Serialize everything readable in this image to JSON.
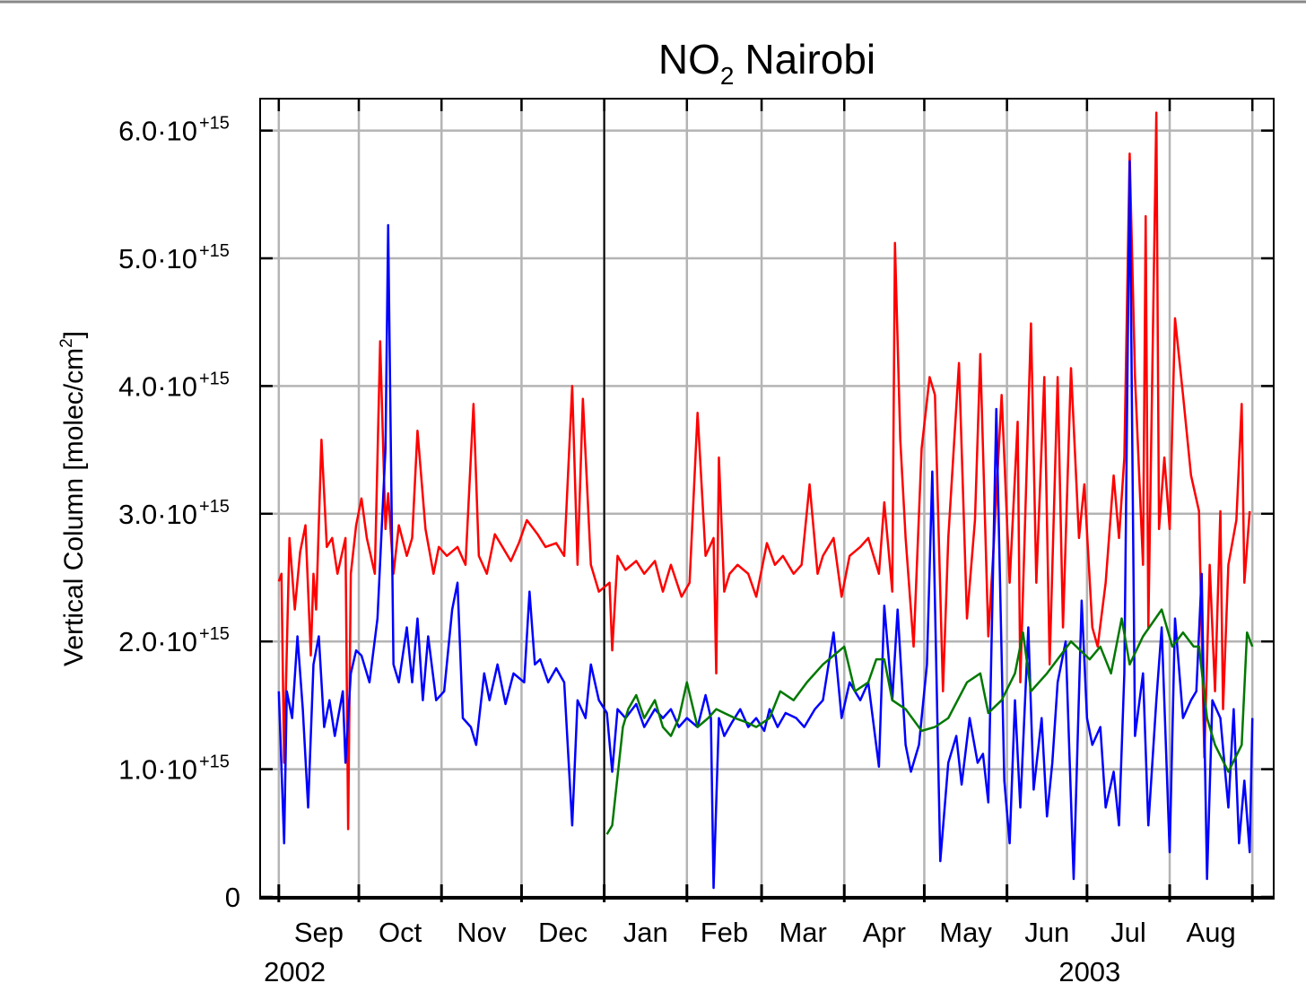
{
  "chart_data": {
    "type": "line",
    "title": {
      "text": "NO",
      "sub": "2",
      "rest": "Nairobi"
    },
    "y_label": {
      "text": "Vertical Column [molec/cm",
      "sup": "2",
      "rest": "]"
    },
    "xlim": [
      -7,
      373
    ],
    "ylim": [
      0,
      6250000000000000.0
    ],
    "xticks": [
      {
        "value": 0,
        "label": "Sep"
      },
      {
        "value": 30,
        "label": "Oct"
      },
      {
        "value": 61,
        "label": "Nov"
      },
      {
        "value": 91,
        "label": "Dec"
      },
      {
        "value": 122,
        "label": "Jan"
      },
      {
        "value": 153,
        "label": "Feb"
      },
      {
        "value": 181,
        "label": "Mar"
      },
      {
        "value": 212,
        "label": "Apr"
      },
      {
        "value": 242,
        "label": "May"
      },
      {
        "value": 273,
        "label": "Jun"
      },
      {
        "value": 303,
        "label": "Jul"
      },
      {
        "value": 334,
        "label": "Aug"
      },
      {
        "value": 365,
        "label": null
      }
    ],
    "yticks": [
      0,
      {
        "value": 1000000000000000.0,
        "label": "1.0·10",
        "exponent": "+15"
      },
      {
        "value": 2000000000000000.0,
        "label": "2.0·10",
        "exponent": "+15"
      },
      {
        "value": 3000000000000000.0,
        "label": "3.0·10",
        "exponent": "+15"
      },
      {
        "value": 4000000000000000.0,
        "label": "4.0·10",
        "exponent": "+15"
      },
      {
        "value": 5000000000000000.0,
        "label": "5.0·10",
        "exponent": "+15"
      },
      {
        "value": 6000000000000000.0,
        "label": "6.0·10",
        "exponent": "+15"
      }
    ],
    "grid": true,
    "year_boundary": 122,
    "annotations": [
      {
        "x": 6,
        "label": "2002"
      },
      {
        "x": 304,
        "label": "2003"
      }
    ],
    "series": [
      {
        "color": "#ff0000",
        "x": [
          0,
          1,
          2,
          4,
          6,
          8,
          10,
          12,
          13,
          14,
          16,
          18,
          20,
          22,
          25,
          26,
          27,
          29,
          31,
          33,
          36,
          38,
          40,
          41,
          43,
          45,
          48,
          50,
          52,
          55,
          58,
          60,
          63,
          67,
          70,
          73,
          75,
          78,
          81,
          83,
          87,
          90,
          93,
          97,
          100,
          104,
          107,
          110,
          112,
          114,
          117,
          120,
          124,
          125,
          127,
          130,
          134,
          137,
          141,
          144,
          147,
          151,
          154,
          157,
          160,
          163,
          164,
          165,
          167,
          169,
          172,
          176,
          179,
          183,
          186,
          189,
          193,
          196,
          199,
          202,
          204,
          208,
          211,
          214,
          218,
          221,
          225,
          227,
          230,
          231,
          233,
          235,
          238,
          241,
          244,
          246,
          249,
          251,
          255,
          258,
          261,
          263,
          266,
          268,
          271,
          274,
          277,
          278,
          282,
          284,
          287,
          289,
          292,
          294,
          297,
          300,
          302,
          305,
          307,
          310,
          313,
          315,
          317,
          319,
          321,
          324,
          325,
          326,
          329,
          330,
          332,
          334,
          336,
          339,
          342,
          345,
          347,
          349,
          351,
          353,
          354,
          356,
          359,
          361,
          362,
          364
        ],
        "values": [
          2470000000000000.0,
          2530000000000000.0,
          1050000000000000.0,
          2810000000000000.0,
          2250000000000000.0,
          2700000000000000.0,
          2910000000000000.0,
          1890000000000000.0,
          2530000000000000.0,
          2250000000000000.0,
          3580000000000000.0,
          2740000000000000.0,
          2810000000000000.0,
          2530000000000000.0,
          2810000000000000.0,
          530000000000000.0,
          2530000000000000.0,
          2910000000000000.0,
          3120000000000000.0,
          2810000000000000.0,
          2530000000000000.0,
          4350000000000000.0,
          2880000000000000.0,
          3160000000000000.0,
          2530000000000000.0,
          2910000000000000.0,
          2670000000000000.0,
          2810000000000000.0,
          3650000000000000.0,
          2880000000000000.0,
          2530000000000000.0,
          2740000000000000.0,
          2670000000000000.0,
          2740000000000000.0,
          2600000000000000.0,
          3860000000000000.0,
          2670000000000000.0,
          2530000000000000.0,
          2840000000000000.0,
          2770000000000000.0,
          2630000000000000.0,
          2770000000000000.0,
          2950000000000000.0,
          2840000000000000.0,
          2740000000000000.0,
          2770000000000000.0,
          2670000000000000.0,
          4000000000000000.0,
          2600000000000000.0,
          3900000000000000.0,
          2600000000000000.0,
          2390000000000000.0,
          2460000000000000.0,
          1930000000000000.0,
          2670000000000000.0,
          2560000000000000.0,
          2630000000000000.0,
          2530000000000000.0,
          2630000000000000.0,
          2390000000000000.0,
          2600000000000000.0,
          2350000000000000.0,
          2460000000000000.0,
          3790000000000000.0,
          2670000000000000.0,
          2810000000000000.0,
          1750000000000000.0,
          3440000000000000.0,
          2390000000000000.0,
          2530000000000000.0,
          2600000000000000.0,
          2530000000000000.0,
          2350000000000000.0,
          2770000000000000.0,
          2600000000000000.0,
          2670000000000000.0,
          2530000000000000.0,
          2600000000000000.0,
          3230000000000000.0,
          2530000000000000.0,
          2670000000000000.0,
          2810000000000000.0,
          2350000000000000.0,
          2670000000000000.0,
          2740000000000000.0,
          2810000000000000.0,
          2530000000000000.0,
          3090000000000000.0,
          2390000000000000.0,
          5120000000000000.0,
          3580000000000000.0,
          2810000000000000.0,
          1960000000000000.0,
          3510000000000000.0,
          4070000000000000.0,
          3930000000000000.0,
          1610000000000000.0,
          2810000000000000.0,
          4180000000000000.0,
          2180000000000000.0,
          2950000000000000.0,
          4250000000000000.0,
          2040000000000000.0,
          2740000000000000.0,
          3930000000000000.0,
          2460000000000000.0,
          3720000000000000.0,
          1680000000000000.0,
          4490000000000000.0,
          2460000000000000.0,
          4070000000000000.0,
          1820000000000000.0,
          4070000000000000.0,
          2110000000000000.0,
          4140000000000000.0,
          2810000000000000.0,
          3230000000000000.0,
          2110000000000000.0,
          1960000000000000.0,
          2460000000000000.0,
          3300000000000000.0,
          2810000000000000.0,
          3440000000000000.0,
          5820000000000000.0,
          4070000000000000.0,
          2600000000000000.0,
          5330000000000000.0,
          2110000000000000.0,
          6140000000000000.0,
          2880000000000000.0,
          3440000000000000.0,
          2880000000000000.0,
          4530000000000000.0,
          3930000000000000.0,
          3300000000000000.0,
          3020000000000000.0,
          1090000000000000.0,
          2600000000000000.0,
          1610000000000000.0,
          3020000000000000.0,
          1470000000000000.0,
          2600000000000000.0,
          2950000000000000.0,
          3860000000000000.0,
          2460000000000000.0,
          3020000000000000.0
        ]
      },
      {
        "color": "#0000ff",
        "x": [
          0,
          2,
          3,
          5,
          7,
          9,
          11,
          13,
          15,
          17,
          19,
          21,
          24,
          25,
          27,
          29,
          31,
          34,
          37,
          40,
          41,
          43,
          45,
          48,
          50,
          52,
          54,
          56,
          59,
          62,
          65,
          67,
          69,
          72,
          74,
          77,
          79,
          82,
          85,
          88,
          92,
          94,
          96,
          98,
          101,
          104,
          107,
          110,
          112,
          115,
          117,
          120,
          123,
          125,
          127,
          130,
          134,
          137,
          141,
          144,
          147,
          150,
          153,
          157,
          160,
          162,
          163,
          165,
          167,
          170,
          173,
          176,
          179,
          182,
          184,
          187,
          190,
          194,
          197,
          201,
          204,
          208,
          211,
          214,
          218,
          221,
          225,
          227,
          230,
          232,
          235,
          237,
          240,
          243,
          245,
          248,
          251,
          254,
          256,
          259,
          262,
          264,
          266,
          269,
          272,
          274,
          276,
          278,
          281,
          283,
          286,
          288,
          290,
          292,
          295,
          298,
          301,
          303,
          305,
          308,
          310,
          313,
          315,
          317,
          319,
          321,
          324,
          326,
          329,
          331,
          334,
          336,
          339,
          342,
          344,
          346,
          348,
          350,
          353,
          356,
          358,
          360,
          362,
          364,
          365
        ],
        "values": [
          1610000000000000.0,
          420000000000000.0,
          1610000000000000.0,
          1400000000000000.0,
          2040000000000000.0,
          1470000000000000.0,
          700000000000000.0,
          1820000000000000.0,
          2040000000000000.0,
          1330000000000000.0,
          1540000000000000.0,
          1260000000000000.0,
          1610000000000000.0,
          1050000000000000.0,
          1750000000000000.0,
          1930000000000000.0,
          1890000000000000.0,
          1680000000000000.0,
          2180000000000000.0,
          3510000000000000.0,
          5260000000000000.0,
          1820000000000000.0,
          1680000000000000.0,
          2110000000000000.0,
          1680000000000000.0,
          2180000000000000.0,
          1540000000000000.0,
          2040000000000000.0,
          1540000000000000.0,
          1610000000000000.0,
          2250000000000000.0,
          2460000000000000.0,
          1400000000000000.0,
          1330000000000000.0,
          1190000000000000.0,
          1750000000000000.0,
          1540000000000000.0,
          1820000000000000.0,
          1510000000000000.0,
          1750000000000000.0,
          1680000000000000.0,
          2390000000000000.0,
          1820000000000000.0,
          1860000000000000.0,
          1680000000000000.0,
          1790000000000000.0,
          1680000000000000.0,
          560000000000000.0,
          1540000000000000.0,
          1400000000000000.0,
          1820000000000000.0,
          1540000000000000.0,
          1440000000000000.0,
          980000000000000.0,
          1470000000000000.0,
          1400000000000000.0,
          1510000000000000.0,
          1330000000000000.0,
          1470000000000000.0,
          1400000000000000.0,
          1470000000000000.0,
          1330000000000000.0,
          1400000000000000.0,
          1330000000000000.0,
          1580000000000000.0,
          1400000000000000.0,
          70000000000000.0,
          1400000000000000.0,
          1260000000000000.0,
          1370000000000000.0,
          1470000000000000.0,
          1330000000000000.0,
          1400000000000000.0,
          1300000000000000.0,
          1470000000000000.0,
          1330000000000000.0,
          1440000000000000.0,
          1400000000000000.0,
          1330000000000000.0,
          1470000000000000.0,
          1540000000000000.0,
          2070000000000000.0,
          1400000000000000.0,
          1680000000000000.0,
          1540000000000000.0,
          1680000000000000.0,
          1020000000000000.0,
          2280000000000000.0,
          1540000000000000.0,
          2250000000000000.0,
          1190000000000000.0,
          980000000000000.0,
          1190000000000000.0,
          1820000000000000.0,
          3330000000000000.0,
          280000000000000.0,
          1050000000000000.0,
          1260000000000000.0,
          880000000000000.0,
          1400000000000000.0,
          1050000000000000.0,
          1120000000000000.0,
          740000000000000.0,
          3820000000000000.0,
          910000000000000.0,
          420000000000000.0,
          1540000000000000.0,
          700000000000000.0,
          2110000000000000.0,
          840000000000000.0,
          1400000000000000.0,
          630000000000000.0,
          1050000000000000.0,
          1680000000000000.0,
          2000000000000000.0,
          140000000000000.0,
          2320000000000000.0,
          1400000000000000.0,
          1190000000000000.0,
          1330000000000000.0,
          700000000000000.0,
          980000000000000.0,
          560000000000000.0,
          1750000000000000.0,
          5760000000000000.0,
          1260000000000000.0,
          1750000000000000.0,
          560000000000000.0,
          1540000000000000.0,
          2110000000000000.0,
          350000000000000.0,
          2180000000000000.0,
          1400000000000000.0,
          1540000000000000.0,
          1610000000000000.0,
          2530000000000000.0,
          140000000000000.0,
          1540000000000000.0,
          1400000000000000.0,
          700000000000000.0,
          1470000000000000.0,
          420000000000000.0,
          910000000000000.0,
          350000000000000.0,
          1400000000000000.0
        ]
      },
      {
        "color": "#007800",
        "x": [
          123,
          125,
          129,
          131,
          134,
          137,
          141,
          144,
          147,
          150,
          153,
          157,
          161,
          164,
          167,
          171,
          175,
          179,
          184,
          188,
          193,
          198,
          204,
          212,
          216,
          221,
          224,
          227,
          230,
          235,
          241,
          246,
          251,
          258,
          263,
          266,
          271,
          276,
          279,
          282,
          288,
          297,
          304,
          308,
          312,
          316,
          319,
          324,
          331,
          335,
          339,
          343,
          345,
          348,
          351,
          356,
          361,
          363,
          365
        ],
        "values": [
          490000000000000.0,
          560000000000000.0,
          1330000000000000.0,
          1470000000000000.0,
          1580000000000000.0,
          1400000000000000.0,
          1540000000000000.0,
          1330000000000000.0,
          1260000000000000.0,
          1400000000000000.0,
          1680000000000000.0,
          1330000000000000.0,
          1400000000000000.0,
          1470000000000000.0,
          1440000000000000.0,
          1400000000000000.0,
          1370000000000000.0,
          1330000000000000.0,
          1400000000000000.0,
          1610000000000000.0,
          1540000000000000.0,
          1680000000000000.0,
          1820000000000000.0,
          1960000000000000.0,
          1610000000000000.0,
          1680000000000000.0,
          1860000000000000.0,
          1860000000000000.0,
          1540000000000000.0,
          1470000000000000.0,
          1300000000000000.0,
          1330000000000000.0,
          1400000000000000.0,
          1680000000000000.0,
          1750000000000000.0,
          1440000000000000.0,
          1540000000000000.0,
          1750000000000000.0,
          2070000000000000.0,
          1610000000000000.0,
          1750000000000000.0,
          2000000000000000.0,
          1860000000000000.0,
          1960000000000000.0,
          1750000000000000.0,
          2180000000000000.0,
          1820000000000000.0,
          2040000000000000.0,
          2250000000000000.0,
          1960000000000000.0,
          2070000000000000.0,
          1960000000000000.0,
          1960000000000000.0,
          1400000000000000.0,
          1190000000000000.0,
          980000000000000.0,
          1190000000000000.0,
          2070000000000000.0,
          1960000000000000.0
        ]
      }
    ]
  }
}
